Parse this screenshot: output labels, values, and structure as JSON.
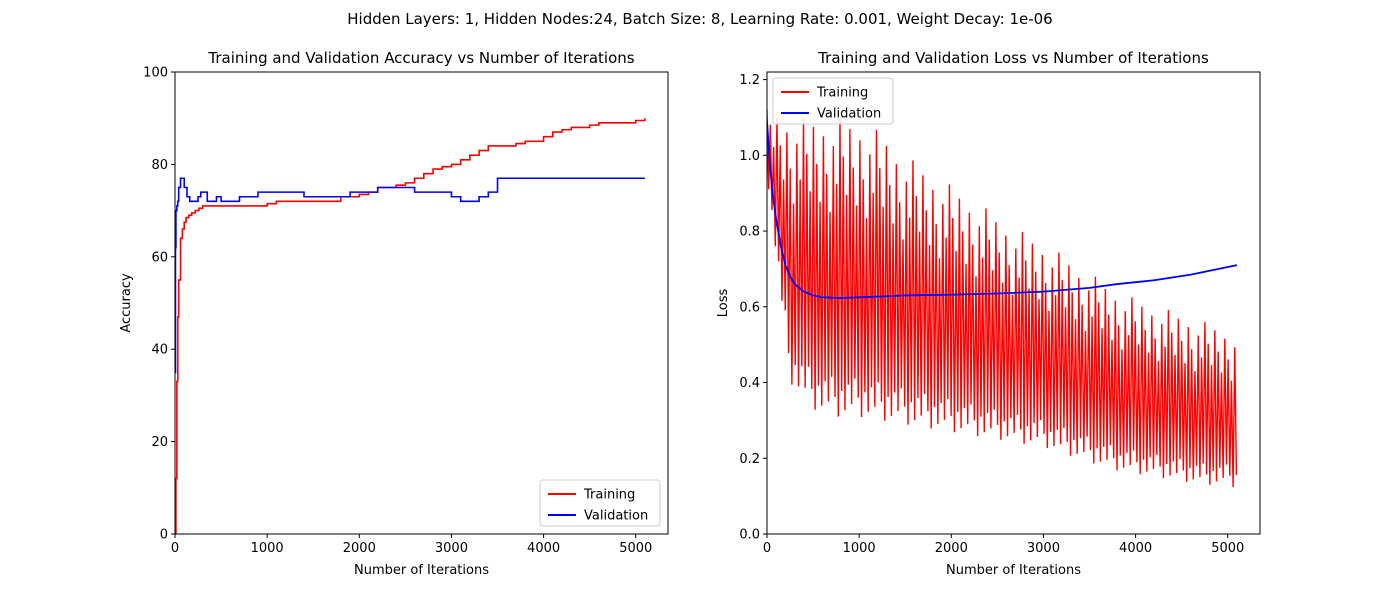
{
  "figure_title": "Hidden Layers: 1, Hidden Nodes:24, Batch Size: 8, Learning Rate: 0.001, Weight Decay: 1e-06",
  "chart_data": [
    {
      "type": "line",
      "title": "Training and Validation Accuracy vs Number of Iterations",
      "xlabel": "Number of Iterations",
      "ylabel": "Accuracy",
      "xlim": [
        0,
        5350
      ],
      "ylim": [
        0,
        100
      ],
      "xticks": [
        0,
        1000,
        2000,
        3000,
        4000,
        5000
      ],
      "yticks": [
        0,
        20,
        40,
        60,
        80,
        100
      ],
      "xtick_labels": [
        "0",
        "1000",
        "2000",
        "3000",
        "4000",
        "5000"
      ],
      "ytick_labels": [
        "0",
        "20",
        "40",
        "60",
        "80",
        "100"
      ],
      "legend_position": "lower right",
      "series": [
        {
          "name": "Training",
          "color": "#ff0000",
          "style": "step",
          "x": [
            0,
            10,
            20,
            30,
            40,
            60,
            80,
            100,
            120,
            150,
            180,
            220,
            260,
            300,
            350,
            400,
            500,
            600,
            700,
            800,
            900,
            1000,
            1100,
            1200,
            1300,
            1400,
            1500,
            1600,
            1700,
            1800,
            1900,
            2000,
            2100,
            2200,
            2300,
            2400,
            2500,
            2600,
            2700,
            2800,
            2900,
            3000,
            3100,
            3200,
            3300,
            3400,
            3500,
            3600,
            3700,
            3800,
            3900,
            4000,
            4100,
            4200,
            4300,
            4400,
            4500,
            4600,
            4700,
            4800,
            4900,
            5000,
            5100
          ],
          "y": [
            0,
            12,
            33,
            47,
            55,
            64,
            66,
            67.5,
            68.5,
            69,
            69.5,
            70,
            70.5,
            71,
            71,
            71,
            71,
            71,
            71,
            71,
            71,
            71.5,
            72,
            72,
            72,
            72,
            72,
            72,
            72,
            73,
            73,
            73.5,
            74,
            75,
            75,
            75.5,
            76,
            77,
            78,
            79,
            79.5,
            80,
            81,
            82,
            83,
            84,
            84,
            84,
            84.5,
            85,
            85,
            86,
            87,
            87.5,
            88,
            88,
            88.5,
            89,
            89,
            89,
            89,
            89.5,
            90
          ]
        },
        {
          "name": "Validation",
          "color": "#0000ff",
          "style": "step",
          "x": [
            0,
            5,
            10,
            20,
            30,
            40,
            60,
            80,
            100,
            130,
            160,
            200,
            250,
            280,
            320,
            350,
            380,
            420,
            450,
            500,
            600,
            700,
            800,
            900,
            1000,
            1100,
            1200,
            1300,
            1400,
            1500,
            1600,
            1700,
            1800,
            1900,
            2000,
            2100,
            2200,
            2300,
            2400,
            2500,
            2600,
            2700,
            2800,
            2900,
            3000,
            3100,
            3200,
            3300,
            3400,
            3500,
            3600,
            3700,
            3800,
            3900,
            4000,
            4200,
            4400,
            4600,
            4800,
            5000,
            5100
          ],
          "y": [
            35,
            62,
            70,
            71,
            72,
            75,
            77,
            77,
            75,
            73,
            72,
            72,
            73,
            74,
            74,
            72,
            72,
            72,
            73,
            72,
            72,
            73,
            73,
            74,
            74,
            74,
            74,
            74,
            73,
            73,
            73,
            73,
            73,
            74,
            74,
            74,
            75,
            75,
            75,
            75,
            74,
            74,
            74,
            74,
            73,
            72,
            72,
            73,
            74,
            77,
            77,
            77,
            77,
            77,
            77,
            77,
            77,
            77,
            77,
            77,
            77
          ]
        }
      ]
    },
    {
      "type": "line",
      "title": "Training and Validation Loss vs Number of Iterations",
      "xlabel": "Number of Iterations",
      "ylabel": "Loss",
      "xlim": [
        0,
        5350
      ],
      "ylim": [
        0,
        1.22
      ],
      "xticks": [
        0,
        1000,
        2000,
        3000,
        4000,
        5000
      ],
      "yticks": [
        0,
        0.2,
        0.4,
        0.6,
        0.8,
        1.0,
        1.2
      ],
      "xtick_labels": [
        "0",
        "1000",
        "2000",
        "3000",
        "4000",
        "5000"
      ],
      "ytick_labels": [
        "0.0",
        "0.2",
        "0.4",
        "0.6",
        "0.8",
        "1.0",
        "1.2"
      ],
      "legend_position": "upper left",
      "series": [
        {
          "name": "Training",
          "color": "#ff0000",
          "style": "oscillating",
          "x": [
            0,
            250,
            500,
            750,
            1000,
            1250,
            1500,
            1750,
            2000,
            2250,
            2500,
            2750,
            3000,
            3250,
            3500,
            3750,
            4000,
            4250,
            4500,
            4750,
            5000,
            5100
          ],
          "y_max": [
            1.12,
            1.1,
            1.1,
            1.1,
            1.09,
            1.06,
            1.0,
            0.96,
            0.92,
            0.88,
            0.84,
            0.8,
            0.77,
            0.73,
            0.69,
            0.65,
            0.62,
            0.6,
            0.58,
            0.56,
            0.54,
            0.53
          ],
          "y_min": [
            0.95,
            0.4,
            0.33,
            0.31,
            0.31,
            0.3,
            0.29,
            0.28,
            0.27,
            0.26,
            0.25,
            0.24,
            0.23,
            0.21,
            0.19,
            0.17,
            0.16,
            0.15,
            0.14,
            0.13,
            0.13,
            0.12
          ]
        },
        {
          "name": "Validation",
          "color": "#0000ff",
          "style": "line",
          "x": [
            0,
            30,
            60,
            100,
            150,
            200,
            250,
            300,
            400,
            500,
            600,
            800,
            1000,
            1500,
            2000,
            2500,
            3000,
            3500,
            3800,
            4200,
            4600,
            5000,
            5100
          ],
          "y": [
            1.09,
            0.98,
            0.9,
            0.83,
            0.76,
            0.71,
            0.68,
            0.66,
            0.64,
            0.63,
            0.625,
            0.623,
            0.625,
            0.63,
            0.632,
            0.635,
            0.64,
            0.65,
            0.66,
            0.67,
            0.685,
            0.705,
            0.71
          ]
        }
      ]
    }
  ]
}
